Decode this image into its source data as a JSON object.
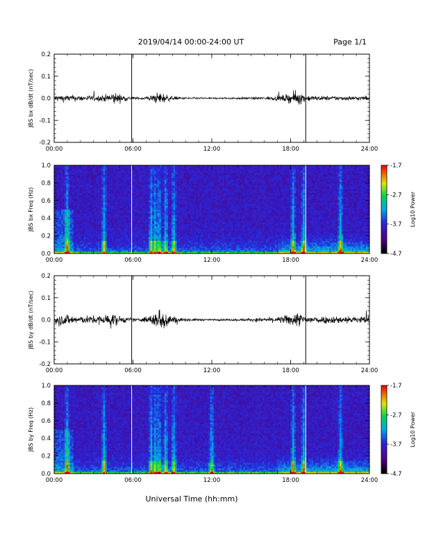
{
  "header": {
    "title": "2019/04/14   00:00-24:00 UT",
    "page": "Page 1/1"
  },
  "xlabel": "Universal Time (hh:mm)",
  "chart_data": [
    {
      "type": "line",
      "ylabel": "JBS bx dB/dt (nT/sec)",
      "xlim": [
        0,
        24
      ],
      "ylim": [
        -0.2,
        0.2
      ],
      "xticks": [
        "00:00",
        "06:00",
        "12:00",
        "18:00",
        "24:00"
      ],
      "yticks": [
        "0.2",
        "0.1",
        "0.0",
        "-0.1",
        "-0.2"
      ],
      "markers_hours": [
        5.9,
        19.15
      ],
      "envelope": {
        "hours": [
          0,
          1,
          2,
          3,
          4,
          4.5,
          5,
          5.9,
          6.5,
          7.5,
          8,
          9,
          10,
          12,
          15,
          17,
          18,
          18.5,
          19,
          20,
          22,
          24
        ],
        "amplitude": [
          0.02,
          0.018,
          0.015,
          0.015,
          0.02,
          0.035,
          0.022,
          0.008,
          0.006,
          0.018,
          0.035,
          0.01,
          0.006,
          0.004,
          0.006,
          0.012,
          0.025,
          0.04,
          0.02,
          0.012,
          0.012,
          0.012
        ]
      }
    },
    {
      "type": "heatmap",
      "ylabel": "JBS bx Freq (Hz)",
      "xlim": [
        0,
        24
      ],
      "ylim": [
        0,
        1
      ],
      "xticks": [
        "00:00",
        "06:00",
        "12:00",
        "18:00",
        "24:00"
      ],
      "yticks": [
        "1.0",
        "0.8",
        "0.6",
        "0.4",
        "0.2",
        "0.0"
      ],
      "markers_hours": [
        5.9,
        19.15
      ],
      "colorbar": {
        "label": "Log10 Power",
        "ticks": [
          "-1.7",
          "-2.7",
          "-3.7",
          "-4.7"
        ],
        "range": [
          -4.7,
          -1.7
        ]
      },
      "bursts_hours": [
        1.0,
        3.8,
        7.4,
        7.7,
        8.0,
        8.5,
        9.1,
        18.2,
        19.0,
        21.8
      ]
    },
    {
      "type": "line",
      "ylabel": "JBS by dB/dt (nT/sec)",
      "xlim": [
        0,
        24
      ],
      "ylim": [
        -0.2,
        0.2
      ],
      "xticks": [
        "00:00",
        "06:00",
        "12:00",
        "18:00",
        "24:00"
      ],
      "yticks": [
        "0.2",
        "0.1",
        "0.0",
        "-0.1",
        "-0.2"
      ],
      "markers_hours": [
        5.9,
        19.15
      ],
      "envelope": {
        "hours": [
          0,
          1,
          2,
          3,
          4,
          4.5,
          5,
          5.9,
          6.5,
          7.5,
          8,
          8.5,
          9,
          10,
          12,
          15,
          17,
          18,
          18.5,
          19,
          20,
          22,
          24
        ],
        "amplitude": [
          0.03,
          0.03,
          0.02,
          0.022,
          0.03,
          0.035,
          0.02,
          0.01,
          0.008,
          0.03,
          0.06,
          0.05,
          0.02,
          0.008,
          0.004,
          0.008,
          0.015,
          0.03,
          0.04,
          0.025,
          0.02,
          0.02,
          0.02
        ]
      }
    },
    {
      "type": "heatmap",
      "ylabel": "JBS by Freq (Hz)",
      "xlim": [
        0,
        24
      ],
      "ylim": [
        0,
        1
      ],
      "xticks": [
        "00:00",
        "06:00",
        "12:00",
        "18:00",
        "24:00"
      ],
      "yticks": [
        "1.0",
        "0.8",
        "0.6",
        "0.4",
        "0.2",
        "0.0"
      ],
      "markers_hours": [
        5.9,
        19.15
      ],
      "colorbar": {
        "label": "Log10 Power",
        "ticks": [
          "-1.7",
          "-2.7",
          "-3.7",
          "-4.7"
        ],
        "range": [
          -4.7,
          -1.7
        ]
      },
      "bursts_hours": [
        1.0,
        3.8,
        7.4,
        7.7,
        8.0,
        8.5,
        9.1,
        12.0,
        18.2,
        19.0,
        21.8
      ]
    }
  ]
}
